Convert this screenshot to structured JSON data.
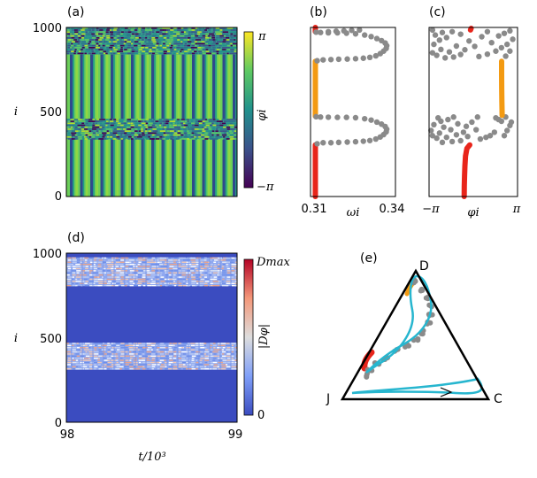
{
  "colors": {
    "gray": "#8a8a8a",
    "red": "#e8251b",
    "orange": "#f39a12",
    "cyan": "#27b6cf",
    "cmap_phase": [
      "#440154",
      "#3b528b",
      "#21918c",
      "#5ec962",
      "#fde725"
    ],
    "cmap_d": [
      "#3b4cc0",
      "#7f9ff8",
      "#dddddd",
      "#f4987a",
      "#b40426"
    ]
  },
  "chart_data": [
    {
      "panel": "(a)",
      "type": "heatmap",
      "ylabel": "i",
      "yticks": [
        "0",
        "500",
        "1000"
      ],
      "ylim": [
        0,
        1000
      ],
      "colorbar_label": "φi",
      "colorbar_ticks": [
        "π",
        "−π"
      ],
      "stripe_bands": [
        {
          "from": 0,
          "to": 340,
          "kind": "coherent"
        },
        {
          "from": 340,
          "to": 460,
          "kind": "incoherent"
        },
        {
          "from": 460,
          "to": 840,
          "kind": "coherent"
        },
        {
          "from": 840,
          "to": 1000,
          "kind": "incoherent"
        }
      ]
    },
    {
      "panel": "(b)",
      "type": "scatter",
      "xlabel": "ωi",
      "xticks": [
        "0.31",
        "0.34"
      ],
      "xlim": [
        0.31,
        0.34
      ],
      "ylim": [
        0,
        1000
      ],
      "series": [
        {
          "color": "red",
          "x_const": 0.3105,
          "y_from": 0,
          "y_to": 305
        },
        {
          "color": "orange",
          "x_const": 0.3105,
          "y_from": 475,
          "y_to": 800
        },
        {
          "color": "red",
          "x_const": 0.3105,
          "y_from": 975,
          "y_to": 1000
        }
      ],
      "gray_points": [
        [
          0.3112,
          312
        ],
        [
          0.3135,
          318
        ],
        [
          0.3165,
          318
        ],
        [
          0.3195,
          320
        ],
        [
          0.3228,
          322
        ],
        [
          0.326,
          324
        ],
        [
          0.329,
          327
        ],
        [
          0.3315,
          331
        ],
        [
          0.3338,
          340
        ],
        [
          0.3355,
          352
        ],
        [
          0.3368,
          366
        ],
        [
          0.3378,
          382
        ],
        [
          0.338,
          398
        ],
        [
          0.3374,
          414
        ],
        [
          0.336,
          428
        ],
        [
          0.3342,
          440
        ],
        [
          0.332,
          452
        ],
        [
          0.3295,
          460
        ],
        [
          0.326,
          466
        ],
        [
          0.3225,
          468
        ],
        [
          0.319,
          468
        ],
        [
          0.3155,
          469
        ],
        [
          0.3125,
          470
        ],
        [
          0.3108,
          472
        ],
        [
          0.3112,
          803
        ],
        [
          0.3135,
          808
        ],
        [
          0.3165,
          810
        ],
        [
          0.3195,
          812
        ],
        [
          0.3228,
          813
        ],
        [
          0.326,
          815
        ],
        [
          0.329,
          818
        ],
        [
          0.3315,
          823
        ],
        [
          0.3338,
          832
        ],
        [
          0.3355,
          845
        ],
        [
          0.3368,
          860
        ],
        [
          0.3378,
          876
        ],
        [
          0.338,
          892
        ],
        [
          0.3374,
          908
        ],
        [
          0.336,
          922
        ],
        [
          0.3342,
          934
        ],
        [
          0.332,
          946
        ],
        [
          0.3295,
          955
        ],
        [
          0.326,
          962
        ],
        [
          0.3225,
          966
        ],
        [
          0.319,
          968
        ],
        [
          0.3155,
          968
        ],
        [
          0.3125,
          970
        ],
        [
          0.3108,
          972
        ],
        [
          0.3155,
          975
        ],
        [
          0.3185,
          978
        ],
        [
          0.3215,
          980
        ],
        [
          0.3245,
          983
        ],
        [
          0.3275,
          985
        ]
      ]
    },
    {
      "panel": "(c)",
      "type": "scatter",
      "xlabel": "φi",
      "xticks": [
        "−π",
        "π"
      ],
      "xlim": [
        -3.14159,
        3.14159
      ],
      "ylim": [
        0,
        1000
      ],
      "series": [
        {
          "color": "red",
          "points": [
            [
              -0.65,
              0
            ],
            [
              -0.64,
              60
            ],
            [
              -0.62,
              120
            ],
            [
              -0.6,
              180
            ],
            [
              -0.55,
              240
            ],
            [
              -0.45,
              285
            ],
            [
              -0.25,
              305
            ]
          ]
        },
        {
          "color": "orange",
          "points": [
            [
              2.05,
              480
            ],
            [
              2.03,
              560
            ],
            [
              2.02,
              640
            ],
            [
              2.01,
              720
            ],
            [
              2.01,
              800
            ]
          ]
        },
        {
          "color": "red",
          "points": [
            [
              -0.2,
              985
            ],
            [
              -0.15,
              995
            ]
          ]
        }
      ],
      "gray_points": [
        [
          -2.2,
          320
        ],
        [
          -1.5,
          325
        ],
        [
          -0.9,
          330
        ],
        [
          -2.6,
          345
        ],
        [
          -1.9,
          350
        ],
        [
          -0.4,
          355
        ],
        [
          0.5,
          340
        ],
        [
          -2.9,
          360
        ],
        [
          -1.2,
          365
        ],
        [
          0.9,
          350
        ],
        [
          -2.4,
          375
        ],
        [
          -0.7,
          380
        ],
        [
          1.2,
          360
        ],
        [
          -3.0,
          390
        ],
        [
          -1.6,
          395
        ],
        [
          0.2,
          395
        ],
        [
          -2.1,
          410
        ],
        [
          -0.5,
          415
        ],
        [
          1.5,
          380
        ],
        [
          -2.8,
          425
        ],
        [
          -1.1,
          430
        ],
        [
          2.2,
          360
        ],
        [
          2.4,
          390
        ],
        [
          2.6,
          420
        ],
        [
          2.0,
          445
        ],
        [
          1.8,
          455
        ],
        [
          -2.3,
          445
        ],
        [
          -1.8,
          455
        ],
        [
          2.3,
          470
        ],
        [
          1.6,
          465
        ],
        [
          -0.1,
          440
        ],
        [
          -2.5,
          465
        ],
        [
          0.3,
          470
        ],
        [
          -1.4,
          470
        ],
        [
          2.7,
          440
        ],
        [
          -2.0,
          820
        ],
        [
          -1.4,
          825
        ],
        [
          -2.6,
          835
        ],
        [
          -0.9,
          840
        ],
        [
          0.4,
          828
        ],
        [
          -2.9,
          850
        ],
        [
          -1.7,
          855
        ],
        [
          1.0,
          842
        ],
        [
          2.3,
          830
        ],
        [
          2.6,
          860
        ],
        [
          -2.3,
          870
        ],
        [
          -0.6,
          868
        ],
        [
          1.6,
          860
        ],
        [
          2.0,
          880
        ],
        [
          -2.8,
          900
        ],
        [
          -1.2,
          890
        ],
        [
          0.1,
          888
        ],
        [
          2.4,
          900
        ],
        [
          -2.4,
          925
        ],
        [
          -0.3,
          920
        ],
        [
          1.3,
          910
        ],
        [
          2.8,
          930
        ],
        [
          -2.7,
          955
        ],
        [
          -1.9,
          940
        ],
        [
          0.6,
          945
        ],
        [
          1.8,
          950
        ],
        [
          2.2,
          965
        ],
        [
          -2.2,
          970
        ],
        [
          -1.5,
          975
        ],
        [
          2.6,
          980
        ],
        [
          -2.9,
          985
        ],
        [
          1.0,
          975
        ],
        [
          -0.9,
          960
        ]
      ]
    },
    {
      "panel": "(d)",
      "type": "heatmap",
      "xlabel": "t/10³",
      "ylabel": "i",
      "xticks": [
        "98",
        "99"
      ],
      "xlim": [
        98,
        99
      ],
      "yticks": [
        "0",
        "500",
        "1000"
      ],
      "ylim": [
        0,
        1000
      ],
      "colorbar_label": "|Dφ|",
      "colorbar_ticks": [
        "Dmax",
        "0"
      ],
      "active_bands": [
        {
          "from": 310,
          "to": 470
        },
        {
          "from": 805,
          "to": 975
        }
      ]
    },
    {
      "panel": "(e)",
      "type": "ternary",
      "vertices": [
        "D",
        "J",
        "C"
      ]
    }
  ]
}
